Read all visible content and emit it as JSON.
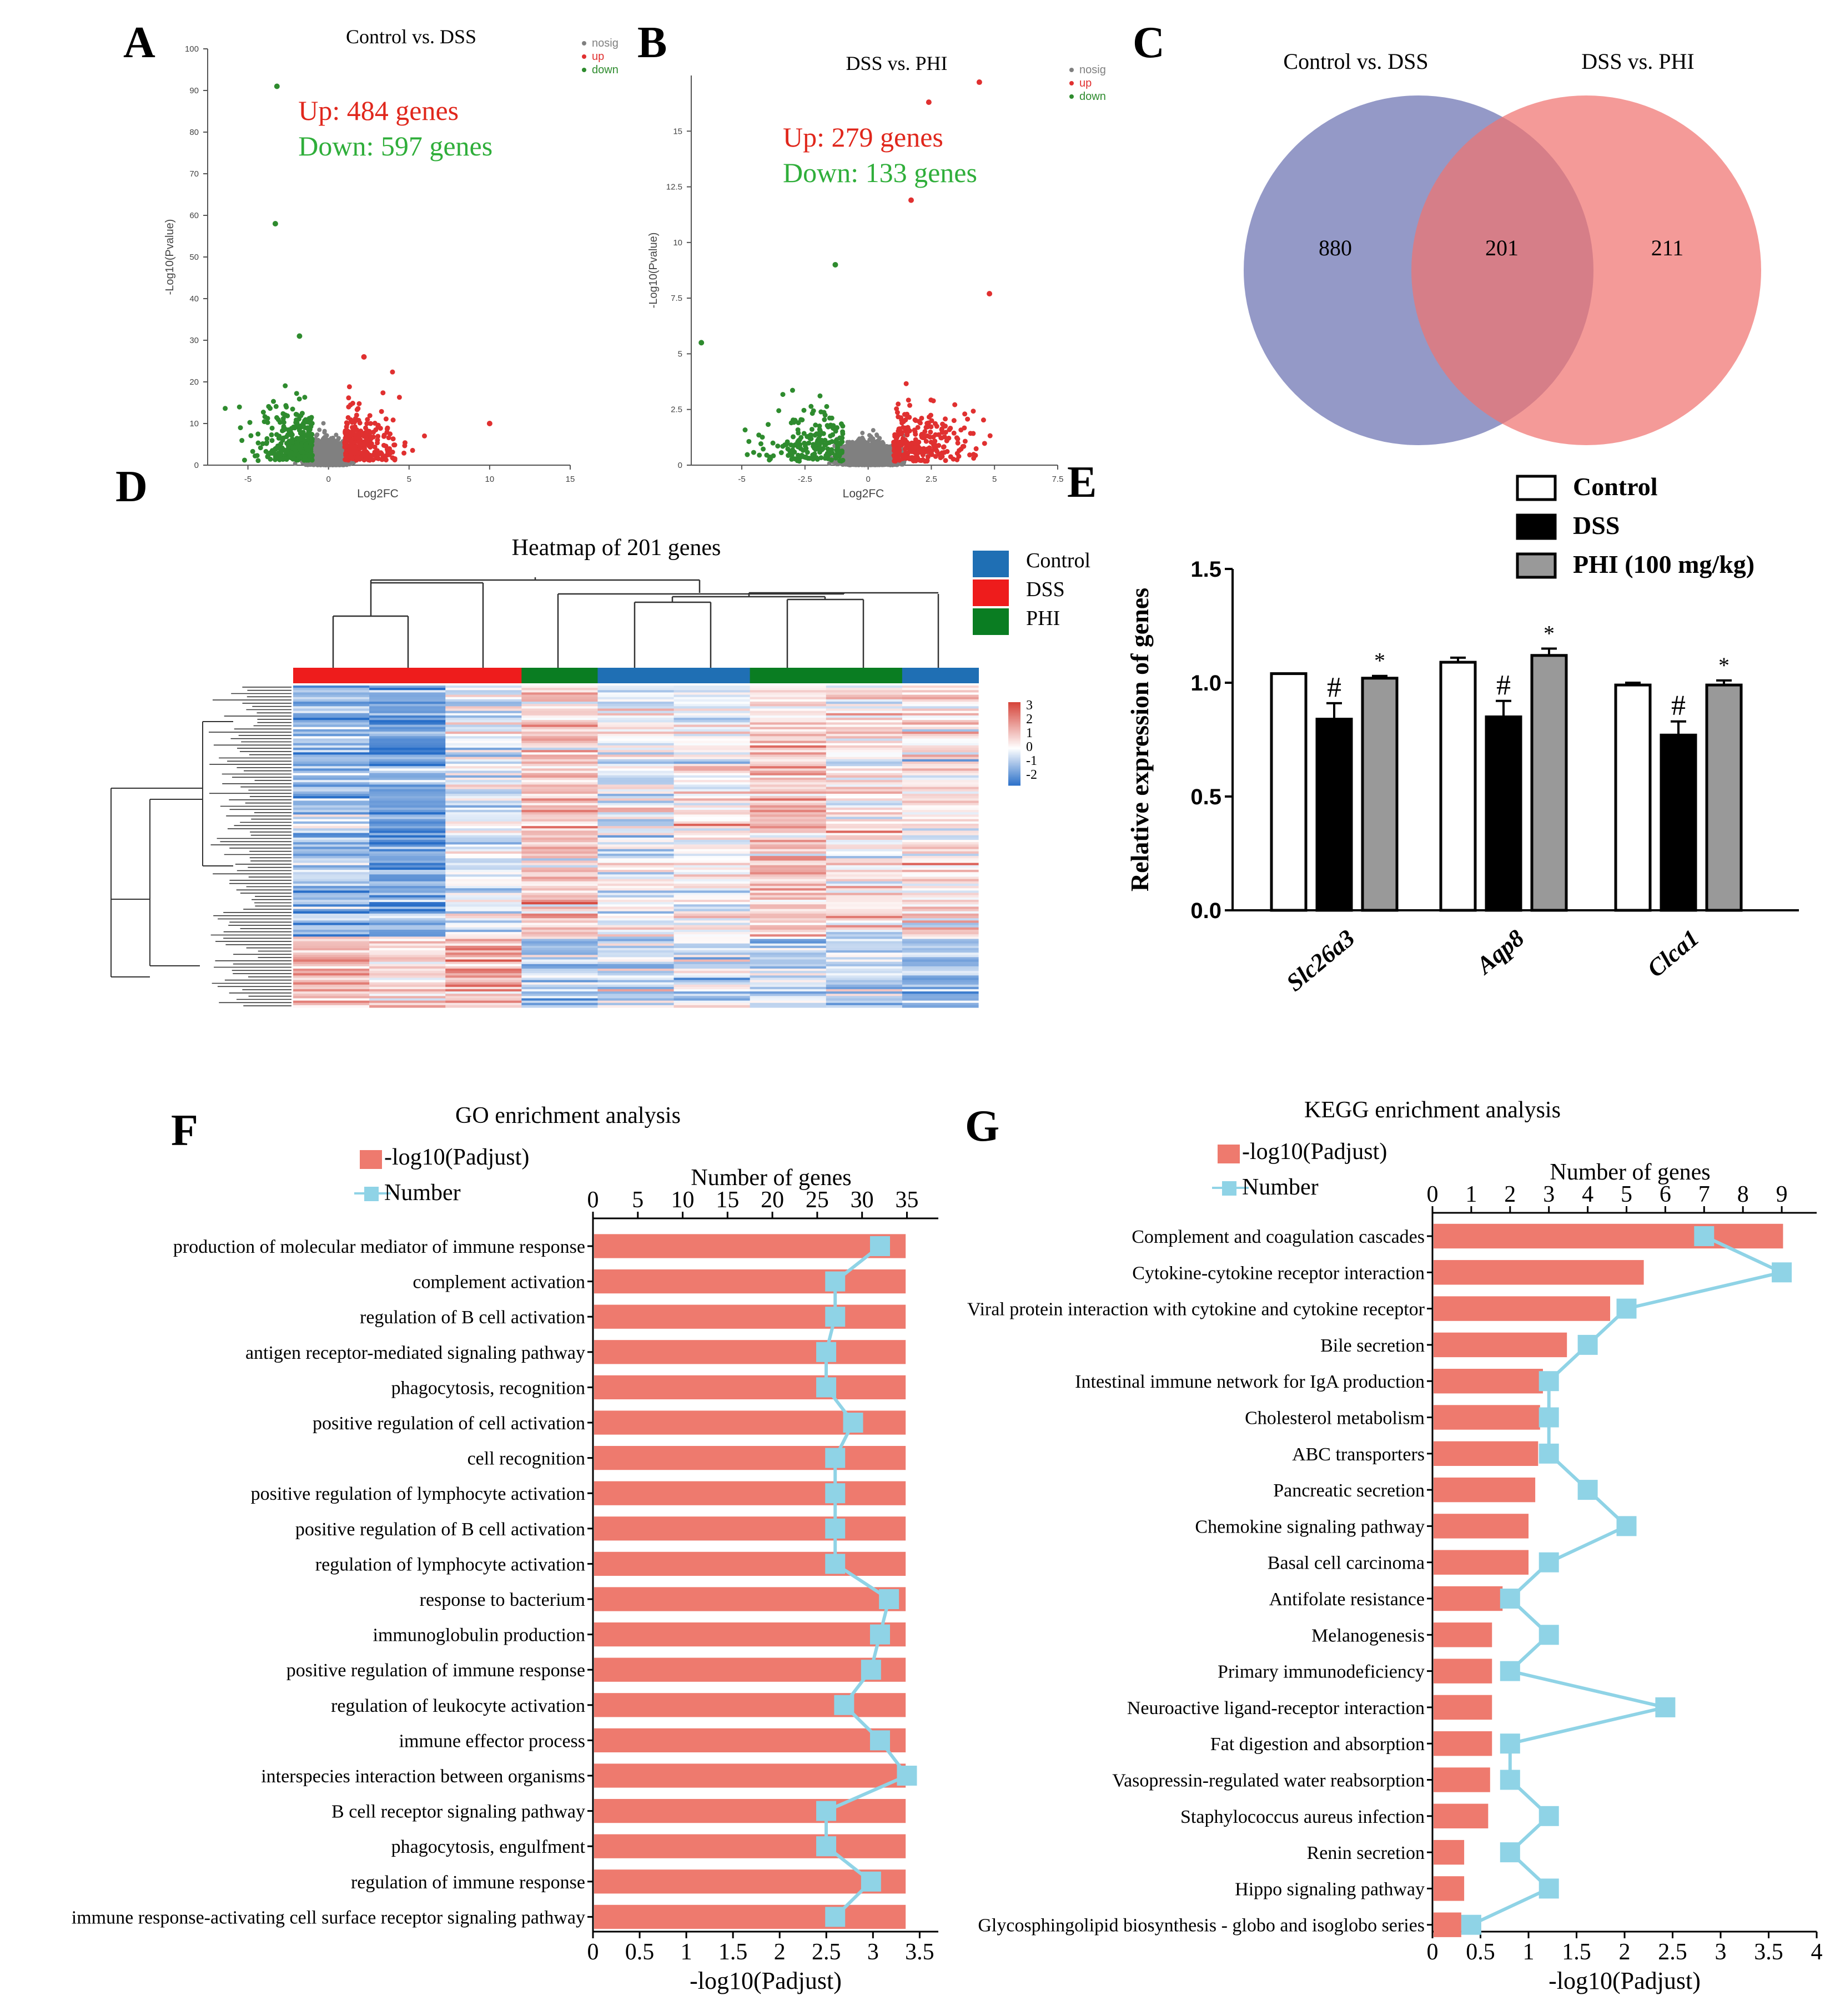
{
  "panels": {
    "A": "A",
    "B": "B",
    "C": "C",
    "D": "D",
    "E": "E",
    "F": "F",
    "G": "G"
  },
  "chart_data": [
    {
      "id": "A",
      "type": "scatter",
      "title": "Control vs. DSS",
      "xlabel": "Log2FC",
      "ylabel": "-Log10(Pvalue)",
      "xticks": [
        "-5",
        "0",
        "5",
        "10",
        "15"
      ],
      "yticks": [
        "0",
        "10",
        "20",
        "30",
        "40",
        "50",
        "60",
        "70",
        "80",
        "90",
        "100"
      ],
      "xlim": [
        -7.5,
        15
      ],
      "ylim": [
        0,
        100
      ],
      "legend": [
        "nosig",
        "up",
        "down"
      ],
      "annotation_up": "Up: 484 genes",
      "annotation_down": "Down: 597 genes",
      "highlight_points": [
        {
          "x": -3.2,
          "y": 91,
          "series": "down"
        },
        {
          "x": -3.3,
          "y": 58,
          "series": "down"
        },
        {
          "x": -1.8,
          "y": 31,
          "series": "down"
        },
        {
          "x": 2.2,
          "y": 26,
          "series": "up"
        },
        {
          "x": 10,
          "y": 10,
          "series": "up"
        }
      ],
      "colors": {
        "nosig": "#808080",
        "up": "#e03030",
        "down": "#2e8b2e"
      }
    },
    {
      "id": "B",
      "type": "scatter",
      "title": "DSS vs. PHI",
      "xlabel": "Log2FC",
      "ylabel": "-Log10(Pvalue)",
      "xticks": [
        "-5",
        "-2.5",
        "0",
        "2.5",
        "5",
        "7.5"
      ],
      "yticks": [
        "0",
        "2.5",
        "5",
        "7.5",
        "10",
        "12.5",
        "15"
      ],
      "xlim": [
        -7,
        7.5
      ],
      "ylim": [
        0,
        17.5
      ],
      "legend": [
        "nosig",
        "up",
        "down"
      ],
      "annotation_up": "Up: 279 genes",
      "annotation_down": "Down: 133 genes",
      "highlight_points": [
        {
          "x": 4.4,
          "y": 17.2,
          "series": "up"
        },
        {
          "x": 2.4,
          "y": 16.3,
          "series": "up"
        },
        {
          "x": 1.7,
          "y": 11.9,
          "series": "up"
        },
        {
          "x": -1.3,
          "y": 9.0,
          "series": "down"
        },
        {
          "x": 4.8,
          "y": 7.7,
          "series": "up"
        },
        {
          "x": -6.6,
          "y": 5.5,
          "series": "down"
        }
      ],
      "colors": {
        "nosig": "#808080",
        "up": "#e03030",
        "down": "#2e8b2e"
      }
    },
    {
      "id": "C",
      "type": "venn",
      "sets": [
        "Control vs. DSS",
        "DSS vs. PHI"
      ],
      "only_left": "880",
      "intersection": "201",
      "only_right": "211",
      "colors": {
        "left": "#8e93c4",
        "right": "#f07370"
      }
    },
    {
      "id": "D",
      "type": "heatmap",
      "title": "Heatmap of 201 genes",
      "legend": [
        "Control",
        "DSS",
        "PHI"
      ],
      "legend_colors": [
        "#1f6fb4",
        "#ee1c1c",
        "#0a7d22"
      ],
      "scale_ticks": [
        "3",
        "2",
        "1",
        "0",
        "-1",
        "-2"
      ],
      "column_groups": [
        "DSS",
        "DSS",
        "DSS",
        "PHI",
        "Control",
        "Control",
        "PHI",
        "PHI",
        "Control"
      ],
      "cluster_means": [
        {
          "rows": 0.78,
          "values": [
            -1.1,
            -1.6,
            -0.4,
            0.9,
            -0.2,
            0.0,
            0.7,
            0.4,
            0.3
          ]
        },
        {
          "rows": 0.22,
          "values": [
            1.3,
            0.8,
            1.4,
            -0.8,
            -0.4,
            -0.3,
            -0.6,
            -0.6,
            -1.0
          ]
        }
      ]
    },
    {
      "id": "E",
      "type": "bar",
      "categories": [
        "Slc26a3",
        "Aqp8",
        "Clca1"
      ],
      "series": [
        {
          "name": "Control",
          "values": [
            1.04,
            1.09,
            0.99
          ],
          "errors": [
            0.0,
            0.02,
            0.01
          ],
          "marks": [
            "",
            "",
            ""
          ]
        },
        {
          "name": "DSS",
          "values": [
            0.84,
            0.85,
            0.77
          ],
          "errors": [
            0.07,
            0.07,
            0.06
          ],
          "marks": [
            "#",
            "#",
            "#"
          ]
        },
        {
          "name": "PHI (100 mg/kg)",
          "values": [
            1.02,
            1.12,
            0.99
          ],
          "errors": [
            0.01,
            0.03,
            0.02
          ],
          "marks": [
            "*",
            "*",
            "*"
          ]
        }
      ],
      "ylabel": "Relative expression of genes",
      "yticks": [
        "0.0",
        "0.5",
        "1.0",
        "1.5"
      ],
      "ylim": [
        0,
        1.5
      ],
      "colors": [
        "#ffffff",
        "#000000",
        "#999999"
      ]
    },
    {
      "id": "F",
      "type": "bar+line",
      "title": "GO enrichment analysis",
      "legend": [
        "-log10(Padjust)",
        "Number"
      ],
      "xlabel_bottom": "-log10(Padjust)",
      "xlabel_top": "Number of genes",
      "xticks_bottom": [
        "0",
        "0.5",
        "1",
        "1.5",
        "2",
        "2.5",
        "3",
        "3.5"
      ],
      "xticks_top": [
        "0",
        "5",
        "10",
        "15",
        "20",
        "25",
        "30",
        "35"
      ],
      "xlim_bottom": [
        0,
        3.7
      ],
      "xlim_top": [
        0,
        38.5
      ],
      "categories": [
        "production of molecular mediator of immune response",
        "complement activation",
        "regulation of B cell activation",
        "antigen receptor-mediated signaling pathway",
        "phagocytosis, recognition",
        "positive regulation of cell activation",
        "cell recognition",
        "positive regulation of lymphocyte activation",
        "positive regulation of B cell activation",
        "regulation of lymphocyte activation",
        "response to bacterium",
        "immunoglobulin production",
        "positive regulation of immune response",
        "regulation of leukocyte activation",
        "immune effector process",
        "interspecies interaction between organisms",
        "B cell receptor signaling pathway",
        "phagocytosis, engulfment",
        "regulation of immune response",
        "immune response-activating cell surface receptor signaling pathway"
      ],
      "padjust": [
        3.35,
        3.35,
        3.35,
        3.35,
        3.35,
        3.35,
        3.35,
        3.35,
        3.35,
        3.35,
        3.35,
        3.35,
        3.35,
        3.35,
        3.35,
        3.35,
        3.35,
        3.35,
        3.35,
        3.35
      ],
      "number": [
        32,
        27,
        27,
        26,
        26,
        29,
        27,
        27,
        27,
        27,
        33,
        32,
        31,
        28,
        32,
        35,
        26,
        26,
        31,
        27
      ],
      "colors": {
        "bar": "#ee7a6e",
        "line": "#8fd3e6",
        "marker": "#8fd3e6"
      }
    },
    {
      "id": "G",
      "type": "bar+line",
      "title": "KEGG enrichment analysis",
      "legend": [
        "-log10(Padjust)",
        "Number"
      ],
      "xlabel_bottom": "-log10(Padjust)",
      "xlabel_top": "Number of genes",
      "xticks_bottom": [
        "0",
        "0.5",
        "1",
        "1.5",
        "2",
        "2.5",
        "3",
        "3.5",
        "4"
      ],
      "xticks_top": [
        "0",
        "1",
        "2",
        "3",
        "4",
        "5",
        "6",
        "7",
        "8",
        "9"
      ],
      "xlim_bottom": [
        0,
        4
      ],
      "xlim_top": [
        0,
        9.9
      ],
      "categories": [
        "Complement and coagulation cascades",
        "Cytokine-cytokine receptor interaction",
        "Viral protein interaction with cytokine and cytokine receptor",
        "Bile secretion",
        "Intestinal immune network for IgA production",
        "Cholesterol metabolism",
        "ABC transporters",
        "Pancreatic secretion",
        "Chemokine signaling pathway",
        "Basal cell carcinoma",
        "Antifolate resistance",
        "Melanogenesis",
        "Primary immunodeficiency",
        "Neuroactive ligand-receptor interaction",
        "Fat digestion and absorption",
        "Vasopressin-regulated water reabsorption",
        "Staphylococcus aureus infection",
        "Renin secretion",
        "Hippo signaling pathway",
        "Glycosphingolipid biosynthesis - globo and isoglobo series"
      ],
      "padjust": [
        3.65,
        2.2,
        1.85,
        1.4,
        1.15,
        1.12,
        1.1,
        1.07,
        1.0,
        1.0,
        0.73,
        0.62,
        0.62,
        0.62,
        0.62,
        0.6,
        0.58,
        0.33,
        0.33,
        0.3
      ],
      "number": [
        7,
        9,
        5,
        4,
        3,
        3,
        3,
        4,
        5,
        3,
        2,
        3,
        2,
        6,
        2,
        2,
        3,
        2,
        3,
        1
      ],
      "colors": {
        "bar": "#ee7a6e",
        "line": "#8fd3e6",
        "marker": "#8fd3e6"
      }
    }
  ]
}
